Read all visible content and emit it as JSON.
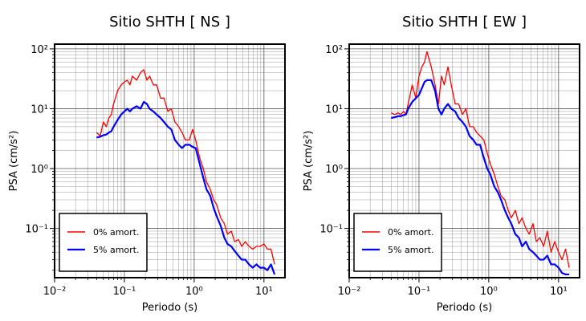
{
  "chart_data": [
    {
      "type": "line",
      "title": "Sitio SHTH [ NS ]",
      "xlabel": "Periodo (s)",
      "ylabel": "PSA (cm/s²)",
      "xscale": "log",
      "yscale": "log",
      "grid": true,
      "legend": "lower left",
      "xlim": [
        0.01,
        20
      ],
      "ylim": [
        0.015,
        120
      ],
      "xticks": [
        {
          "value": 0.01,
          "label": "10⁻²"
        },
        {
          "value": 0.1,
          "label": "10⁻¹"
        },
        {
          "value": 1,
          "label": "10⁰"
        },
        {
          "value": 10,
          "label": "10¹"
        }
      ],
      "yticks": [
        {
          "value": 0.1,
          "label": "10⁻¹"
        },
        {
          "value": 1,
          "label": "10⁰"
        },
        {
          "value": 10,
          "label": "10¹"
        },
        {
          "value": 100,
          "label": "10²"
        }
      ],
      "x": [
        0.04,
        0.045,
        0.05,
        0.055,
        0.06,
        0.065,
        0.07,
        0.08,
        0.09,
        0.1,
        0.11,
        0.12,
        0.13,
        0.15,
        0.17,
        0.19,
        0.21,
        0.23,
        0.26,
        0.29,
        0.33,
        0.37,
        0.42,
        0.47,
        0.53,
        0.6,
        0.67,
        0.75,
        0.85,
        0.95,
        1.05,
        1.2,
        1.35,
        1.5,
        1.7,
        1.9,
        2.1,
        2.4,
        2.7,
        3.0,
        3.4,
        3.8,
        4.3,
        4.8,
        5.4,
        6.1,
        6.9,
        7.8,
        8.8,
        10,
        11.2,
        12.6,
        14.2
      ],
      "series": [
        {
          "name": "0% amort.",
          "color": "#ff0000",
          "values": [
            4,
            3.5,
            6,
            5,
            7,
            8,
            12,
            20,
            25,
            28,
            30,
            25,
            35,
            30,
            40,
            45,
            30,
            35,
            25,
            25,
            15,
            15,
            9,
            10,
            6,
            5,
            4,
            3,
            3,
            4.5,
            3,
            1.5,
            1.0,
            0.6,
            0.45,
            0.3,
            0.25,
            0.15,
            0.12,
            0.08,
            0.09,
            0.06,
            0.065,
            0.05,
            0.06,
            0.05,
            0.045,
            0.05,
            0.05,
            0.055,
            0.045,
            0.045,
            0.025
          ]
        },
        {
          "name": "5% amort.",
          "color": "#0000ff",
          "values": [
            3.3,
            3.4,
            3.6,
            3.7,
            4,
            4.2,
            5,
            6.5,
            8,
            9,
            10,
            9,
            10,
            11,
            10,
            13,
            12,
            10,
            9,
            8,
            7,
            6,
            5,
            4.5,
            3,
            2.5,
            2.2,
            2.5,
            2.5,
            2.3,
            2.2,
            1.2,
            0.7,
            0.45,
            0.35,
            0.22,
            0.16,
            0.11,
            0.07,
            0.055,
            0.05,
            0.042,
            0.035,
            0.03,
            0.03,
            0.025,
            0.022,
            0.025,
            0.022,
            0.022,
            0.02,
            0.025,
            0.017
          ]
        }
      ]
    },
    {
      "type": "line",
      "title": "Sitio SHTH [ EW ]",
      "xlabel": "Periodo (s)",
      "ylabel": "PSA (cm/s²)",
      "xscale": "log",
      "yscale": "log",
      "grid": true,
      "legend": "lower left",
      "xlim": [
        0.01,
        20
      ],
      "ylim": [
        0.015,
        120
      ],
      "xticks": [
        {
          "value": 0.01,
          "label": "10⁻²"
        },
        {
          "value": 0.1,
          "label": "10⁻¹"
        },
        {
          "value": 1,
          "label": "10⁰"
        },
        {
          "value": 10,
          "label": "10¹"
        }
      ],
      "yticks": [
        {
          "value": 0.1,
          "label": "10⁻¹"
        },
        {
          "value": 1,
          "label": "10⁰"
        },
        {
          "value": 10,
          "label": "10¹"
        },
        {
          "value": 100,
          "label": "10²"
        }
      ],
      "x": [
        0.04,
        0.045,
        0.05,
        0.055,
        0.06,
        0.065,
        0.07,
        0.08,
        0.09,
        0.1,
        0.11,
        0.12,
        0.13,
        0.15,
        0.17,
        0.19,
        0.21,
        0.23,
        0.26,
        0.29,
        0.33,
        0.37,
        0.42,
        0.47,
        0.53,
        0.6,
        0.67,
        0.75,
        0.85,
        0.95,
        1.05,
        1.2,
        1.35,
        1.5,
        1.7,
        1.9,
        2.1,
        2.4,
        2.7,
        3.0,
        3.4,
        3.8,
        4.3,
        4.8,
        5.4,
        6.1,
        6.9,
        7.8,
        8.8,
        10,
        11.2,
        12.6,
        14.2
      ],
      "series": [
        {
          "name": "0% amort.",
          "color": "#ff0000",
          "values": [
            8.5,
            8,
            8.5,
            8,
            9,
            8,
            12,
            25,
            15,
            35,
            50,
            60,
            90,
            50,
            25,
            12,
            35,
            25,
            50,
            25,
            12,
            12,
            8,
            10,
            5,
            5,
            4,
            3.5,
            3,
            1.8,
            1.2,
            0.8,
            0.5,
            0.35,
            0.3,
            0.2,
            0.15,
            0.2,
            0.12,
            0.15,
            0.1,
            0.08,
            0.12,
            0.06,
            0.07,
            0.05,
            0.09,
            0.04,
            0.06,
            0.04,
            0.03,
            0.045,
            0.022
          ]
        },
        {
          "name": "5% amort.",
          "color": "#0000ff",
          "values": [
            7,
            7.2,
            7.5,
            7.5,
            7.8,
            8,
            10,
            13,
            15,
            17,
            22,
            28,
            30,
            30,
            20,
            10,
            8,
            10,
            12,
            10,
            9,
            7,
            6,
            5,
            3.5,
            3,
            2.5,
            2.5,
            1.5,
            1.0,
            0.8,
            0.5,
            0.4,
            0.3,
            0.2,
            0.15,
            0.12,
            0.08,
            0.07,
            0.05,
            0.06,
            0.045,
            0.04,
            0.035,
            0.03,
            0.03,
            0.035,
            0.025,
            0.025,
            0.022,
            0.018,
            0.017,
            0.017
          ]
        }
      ]
    }
  ]
}
